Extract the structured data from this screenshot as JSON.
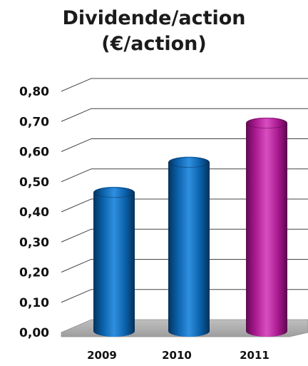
{
  "chart_data": {
    "type": "bar",
    "title": "Dividende/action",
    "subtitle": "(€/action)",
    "categories": [
      "2009",
      "2010",
      "2011"
    ],
    "values": [
      0.45,
      0.55,
      0.68
    ],
    "ylim": [
      0,
      0.8
    ],
    "y_ticks": [
      "0,00",
      "0,10",
      "0,20",
      "0,30",
      "0,40",
      "0,50",
      "0,60",
      "0,70",
      "0,80"
    ],
    "bar_colors": [
      "#0a5fa8",
      "#0a5fa8",
      "#a8188f"
    ],
    "grid": true,
    "legend": "none"
  }
}
